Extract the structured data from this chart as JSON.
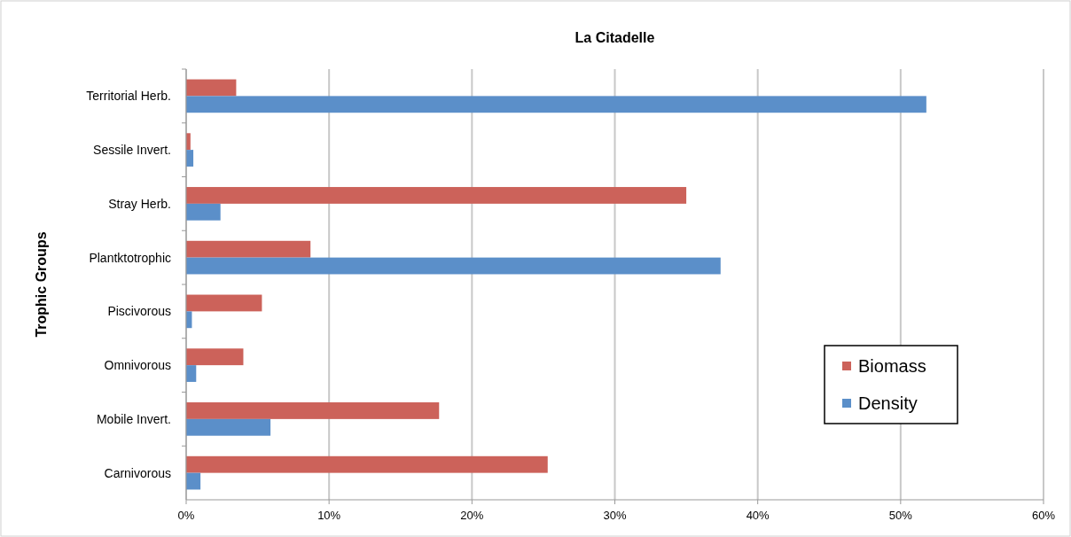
{
  "chart_data": {
    "type": "bar",
    "orientation": "horizontal",
    "title": "La Citadelle",
    "ylabel": "Trophic Groups",
    "categories": [
      "Territorial Herb.",
      "Sessile Invert.",
      "Stray Herb.",
      "Plantktotrophic",
      "Piscivorous",
      "Omnivorous",
      "Mobile Invert.",
      "Carnivorous"
    ],
    "series": [
      {
        "name": "Biomass",
        "color": "#cc625a",
        "values": [
          3.5,
          0.3,
          35.0,
          8.7,
          5.3,
          4.0,
          17.7,
          25.3
        ]
      },
      {
        "name": "Density",
        "color": "#5b8fc9",
        "values": [
          51.8,
          0.5,
          2.4,
          37.4,
          0.4,
          0.7,
          5.9,
          1.0
        ]
      }
    ],
    "xlim": [
      0,
      60
    ],
    "xticks": [
      {
        "value": 0,
        "label": "0%"
      },
      {
        "value": 10,
        "label": "10%"
      },
      {
        "value": 20,
        "label": "20%"
      },
      {
        "value": 30,
        "label": "30%"
      },
      {
        "value": 40,
        "label": "40%"
      },
      {
        "value": 50,
        "label": "50%"
      },
      {
        "value": 60,
        "label": "60%"
      }
    ],
    "grid": "x",
    "legend": "bottom right"
  }
}
